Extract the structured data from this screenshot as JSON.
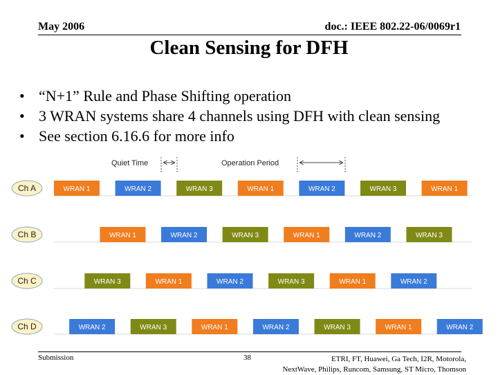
{
  "header": {
    "date": "May 2006",
    "doc": "doc.: IEEE 802.22-06/0069r1"
  },
  "title": "Clean Sensing for DFH",
  "bullets": [
    "“N+1” Rule and Phase Shifting operation",
    "3 WRAN systems share 4 channels using DFH with clean sensing",
    "See section 6.16.6 for more info"
  ],
  "diagram": {
    "quiet_label": "Quiet Time",
    "operation_label": "Operation Period",
    "colors": {
      "WRAN 1": "#f07d1e",
      "WRAN 2": "#3a7ad9",
      "WRAN 3": "#7f8a16"
    },
    "channels": [
      {
        "label": "Ch A",
        "blocks": [
          {
            "start": 0,
            "wran": "WRAN 1"
          },
          {
            "start": 1,
            "wran": "WRAN 2"
          },
          {
            "start": 2,
            "wran": "WRAN 3"
          },
          {
            "start": 3,
            "wran": "WRAN 1"
          },
          {
            "start": 4,
            "wran": "WRAN 2"
          },
          {
            "start": 5,
            "wran": "WRAN 3"
          },
          {
            "start": 6,
            "wran": "WRAN 1"
          }
        ]
      },
      {
        "label": "Ch B",
        "blocks": [
          {
            "start": 0.75,
            "wran": "WRAN 1"
          },
          {
            "start": 1.75,
            "wran": "WRAN 2"
          },
          {
            "start": 2.75,
            "wran": "WRAN 3"
          },
          {
            "start": 3.75,
            "wran": "WRAN 1"
          },
          {
            "start": 4.75,
            "wran": "WRAN 2"
          },
          {
            "start": 5.75,
            "wran": "WRAN 3"
          }
        ]
      },
      {
        "label": "Ch C",
        "blocks": [
          {
            "start": 0.5,
            "wran": "WRAN 3"
          },
          {
            "start": 1.5,
            "wran": "WRAN 1"
          },
          {
            "start": 2.5,
            "wran": "WRAN 2"
          },
          {
            "start": 3.5,
            "wran": "WRAN 3"
          },
          {
            "start": 4.5,
            "wran": "WRAN 1"
          },
          {
            "start": 5.5,
            "wran": "WRAN 2"
          }
        ]
      },
      {
        "label": "Ch D",
        "blocks": [
          {
            "start": 0.25,
            "wran": "WRAN 2"
          },
          {
            "start": 1.25,
            "wran": "WRAN 3"
          },
          {
            "start": 2.25,
            "wran": "WRAN 1"
          },
          {
            "start": 3.25,
            "wran": "WRAN 2"
          },
          {
            "start": 4.25,
            "wran": "WRAN 3"
          },
          {
            "start": 5.25,
            "wran": "WRAN 1"
          },
          {
            "start": 6.25,
            "wran": "WRAN 2"
          }
        ]
      }
    ]
  },
  "footer": {
    "submission": "Submission",
    "page": "38",
    "authors_line1": "ETRI, FT, Huawei, Ga Tech, I2R, Motorola,",
    "authors_line2": "NextWave, Philips, Runcom, Samsung, ST Micro, Thomson"
  }
}
